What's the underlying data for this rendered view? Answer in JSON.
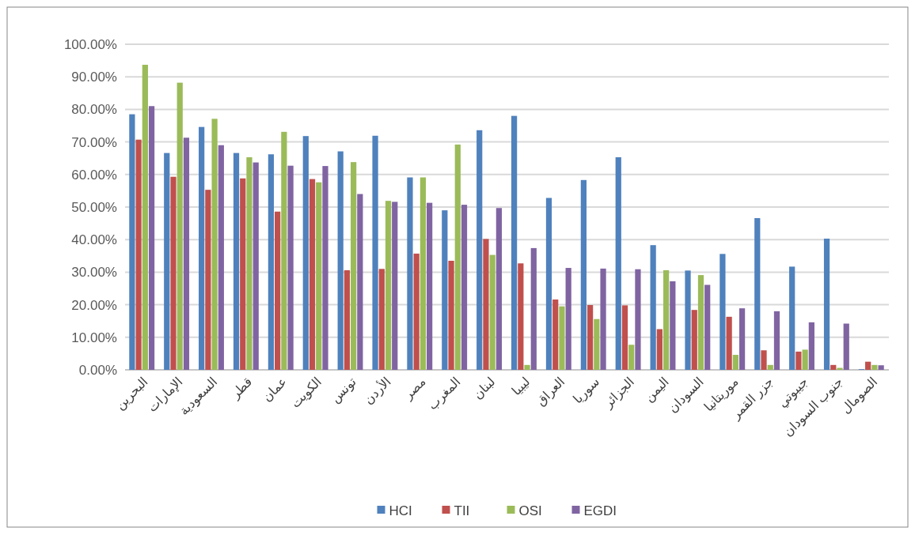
{
  "chart_data": {
    "type": "bar",
    "categories": [
      "البحرين",
      "الإمارات",
      "السعودية",
      "قطر",
      "عمان",
      "الكويت",
      "تونس",
      "الأردن",
      "مصر",
      "المغرب",
      "لبنان",
      "ليبيا",
      "العراق",
      "سوريا",
      "الجزائر",
      "اليمن",
      "السودان",
      "موريتانيا",
      "جزر القمر",
      "جيبوتي",
      "جنوب السودان",
      "الصومال"
    ],
    "series": [
      {
        "name": "HCI",
        "color": "#4f81bd",
        "values": [
          78.5,
          66.6,
          74.6,
          66.6,
          66.2,
          71.8,
          67.1,
          71.9,
          59.1,
          49.0,
          73.6,
          78.0,
          52.8,
          58.3,
          65.3,
          38.3,
          30.5,
          35.6,
          46.6,
          31.7,
          40.3,
          0.2
        ]
      },
      {
        "name": "TII",
        "color": "#c0504d",
        "values": [
          70.7,
          59.3,
          55.3,
          58.8,
          48.6,
          58.6,
          30.6,
          31.0,
          35.7,
          33.5,
          40.2,
          32.7,
          21.6,
          19.9,
          19.8,
          12.5,
          18.4,
          16.3,
          6.0,
          5.6,
          1.5,
          2.5
        ]
      },
      {
        "name": "OSI",
        "color": "#9bbb59",
        "values": [
          93.7,
          88.2,
          77.1,
          65.3,
          73.1,
          57.6,
          63.8,
          51.9,
          59.1,
          69.2,
          35.3,
          1.5,
          19.5,
          15.6,
          7.7,
          30.6,
          29.1,
          4.6,
          1.5,
          6.2,
          0.6,
          1.5
        ]
      },
      {
        "name": "EGDI",
        "color": "#8064a2",
        "values": [
          81.0,
          71.3,
          69.0,
          63.7,
          62.7,
          62.6,
          54.0,
          51.6,
          51.3,
          50.7,
          49.7,
          37.4,
          31.3,
          31.1,
          30.9,
          27.2,
          26.1,
          18.9,
          18.0,
          14.6,
          14.2,
          1.4
        ]
      }
    ],
    "ylim": [
      0,
      100
    ],
    "yticks": [
      {
        "value": 0,
        "label": "0.00%"
      },
      {
        "value": 10,
        "label": "10.00%"
      },
      {
        "value": 20,
        "label": "20.00%"
      },
      {
        "value": 30,
        "label": "30.00%"
      },
      {
        "value": 40,
        "label": "40.00%"
      },
      {
        "value": 50,
        "label": "50.00%"
      },
      {
        "value": 60,
        "label": "60.00%"
      },
      {
        "value": 70,
        "label": "70.00%"
      },
      {
        "value": 80,
        "label": "80.00%"
      },
      {
        "value": 90,
        "label": "90.00%"
      },
      {
        "value": 100,
        "label": "100.00%"
      }
    ],
    "grid": "y",
    "legend": "bottom"
  }
}
